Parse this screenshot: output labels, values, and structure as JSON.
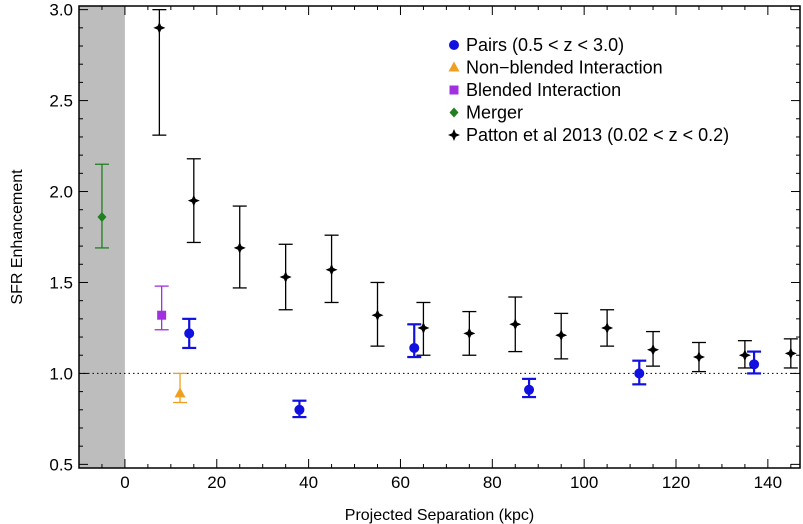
{
  "chart_data": {
    "type": "scatter",
    "xlabel": "Projected Separation (kpc)",
    "ylabel": "SFR Enhancement",
    "xlim": [
      -10,
      147
    ],
    "ylim": [
      0.48,
      3.02
    ],
    "xticks": [
      "0",
      "20",
      "40",
      "60",
      "80",
      "100",
      "120",
      "140"
    ],
    "yticks": [
      "0.5",
      "1.0",
      "1.5",
      "2.0",
      "2.5",
      "3.0"
    ],
    "grid": false,
    "legend_position": "top-right",
    "reference_line": {
      "y": 1.0,
      "style": "dotted"
    },
    "shaded_region": {
      "x": [
        -10,
        0
      ],
      "color": "#bdbdbd"
    },
    "series": [
      {
        "name": "Pairs (0.5 < z < 3.0)",
        "marker": "circle",
        "color": "#1010e0",
        "points": [
          {
            "x": 14,
            "y": 1.22,
            "ylow": 1.14,
            "yhigh": 1.3
          },
          {
            "x": 38,
            "y": 0.8,
            "ylow": 0.76,
            "yhigh": 0.85
          },
          {
            "x": 63,
            "y": 1.14,
            "ylow": 1.09,
            "yhigh": 1.27
          },
          {
            "x": 88,
            "y": 0.91,
            "ylow": 0.87,
            "yhigh": 0.97
          },
          {
            "x": 112,
            "y": 1.0,
            "ylow": 0.94,
            "yhigh": 1.07
          },
          {
            "x": 137,
            "y": 1.05,
            "ylow": 1.0,
            "yhigh": 1.12
          }
        ]
      },
      {
        "name": "Non−blended Interaction",
        "marker": "triangle",
        "color": "#f0a020",
        "points": [
          {
            "x": 12,
            "y": 0.89,
            "ylow": 0.84,
            "yhigh": 1.0
          }
        ]
      },
      {
        "name": "Blended Interaction",
        "marker": "square",
        "color": "#a030e0",
        "points": [
          {
            "x": 8,
            "y": 1.32,
            "ylow": 1.24,
            "yhigh": 1.48
          }
        ]
      },
      {
        "name": "Merger",
        "marker": "diamond",
        "color": "#208020",
        "points": [
          {
            "x": -5,
            "y": 1.86,
            "ylow": 1.69,
            "yhigh": 2.15
          }
        ]
      },
      {
        "name": "Patton et al 2013 (0.02 < z < 0.2)",
        "marker": "star",
        "color": "#000000",
        "points": [
          {
            "x": 7.5,
            "y": 2.9,
            "ylow": 2.31,
            "yhigh": 3.0
          },
          {
            "x": 15,
            "y": 1.95,
            "ylow": 1.72,
            "yhigh": 2.18
          },
          {
            "x": 25,
            "y": 1.69,
            "ylow": 1.47,
            "yhigh": 1.92
          },
          {
            "x": 35,
            "y": 1.53,
            "ylow": 1.35,
            "yhigh": 1.71
          },
          {
            "x": 45,
            "y": 1.57,
            "ylow": 1.39,
            "yhigh": 1.76
          },
          {
            "x": 55,
            "y": 1.32,
            "ylow": 1.15,
            "yhigh": 1.5
          },
          {
            "x": 65,
            "y": 1.25,
            "ylow": 1.1,
            "yhigh": 1.39
          },
          {
            "x": 75,
            "y": 1.22,
            "ylow": 1.1,
            "yhigh": 1.34
          },
          {
            "x": 85,
            "y": 1.27,
            "ylow": 1.12,
            "yhigh": 1.42
          },
          {
            "x": 95,
            "y": 1.21,
            "ylow": 1.08,
            "yhigh": 1.33
          },
          {
            "x": 105,
            "y": 1.25,
            "ylow": 1.15,
            "yhigh": 1.35
          },
          {
            "x": 115,
            "y": 1.13,
            "ylow": 1.04,
            "yhigh": 1.23
          },
          {
            "x": 125,
            "y": 1.09,
            "ylow": 1.01,
            "yhigh": 1.17
          },
          {
            "x": 135,
            "y": 1.1,
            "ylow": 1.03,
            "yhigh": 1.18
          },
          {
            "x": 145,
            "y": 1.11,
            "ylow": 1.03,
            "yhigh": 1.19
          }
        ]
      }
    ]
  }
}
